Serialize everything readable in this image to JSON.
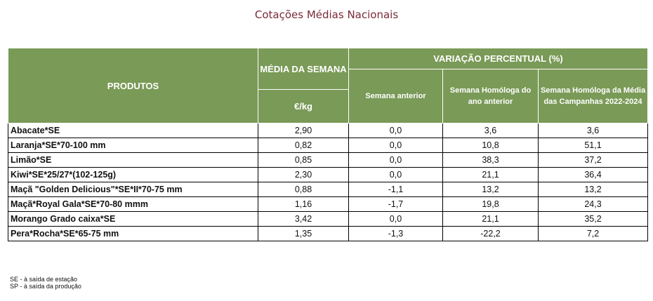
{
  "title": "Cotações Médias Nacionais",
  "header": {
    "produtos": "PRODUTOS",
    "media": "MÉDIA DA SEMANA",
    "unit": "€/kg",
    "variacao": "VARIAÇÃO PERCENTUAL (%)",
    "col_anterior": "Semana anterior",
    "col_homologa": "Semana Homóloga do ano anterior",
    "col_campanhas": "Semana Homóloga da Média das Campanhas 2022-2024"
  },
  "rows": [
    {
      "produto": "Abacate*SE",
      "media": "2,90",
      "anterior": "0,0",
      "homologa": "3,6",
      "campanhas": "3,6"
    },
    {
      "produto": "Laranja*SE*70-100 mm",
      "media": "0,82",
      "anterior": "0,0",
      "homologa": "10,8",
      "campanhas": "51,1"
    },
    {
      "produto": "Limão*SE",
      "media": "0,85",
      "anterior": "0,0",
      "homologa": "38,3",
      "campanhas": "37,2"
    },
    {
      "produto": "Kiwi*SE*25/27*(102-125g)",
      "media": "2,30",
      "anterior": "0,0",
      "homologa": "21,1",
      "campanhas": "36,4"
    },
    {
      "produto": "Maçã \"Golden Delicious\"*SE*II*70-75 mm",
      "media": "0,88",
      "anterior": "-1,1",
      "homologa": "13,2",
      "campanhas": "13,2"
    },
    {
      "produto": "Maçã*Royal Gala*SE*70-80 mmm",
      "media": "1,16",
      "anterior": "-1,7",
      "homologa": "19,8",
      "campanhas": "24,3"
    },
    {
      "produto": "Morango Grado caixa*SE",
      "media": "3,42",
      "anterior": "0,0",
      "homologa": "21,1",
      "campanhas": "35,2"
    },
    {
      "produto": "Pera*Rocha*SE*65-75 mm",
      "media": "1,35",
      "anterior": "-1,3",
      "homologa": "-22,2",
      "campanhas": "7,2"
    }
  ],
  "notes": {
    "se": "SE - à saída de estação",
    "sp": "SP - à saída da produção"
  },
  "colors": {
    "header_bg": "#7a9a57",
    "title": "#7b2a3a"
  }
}
